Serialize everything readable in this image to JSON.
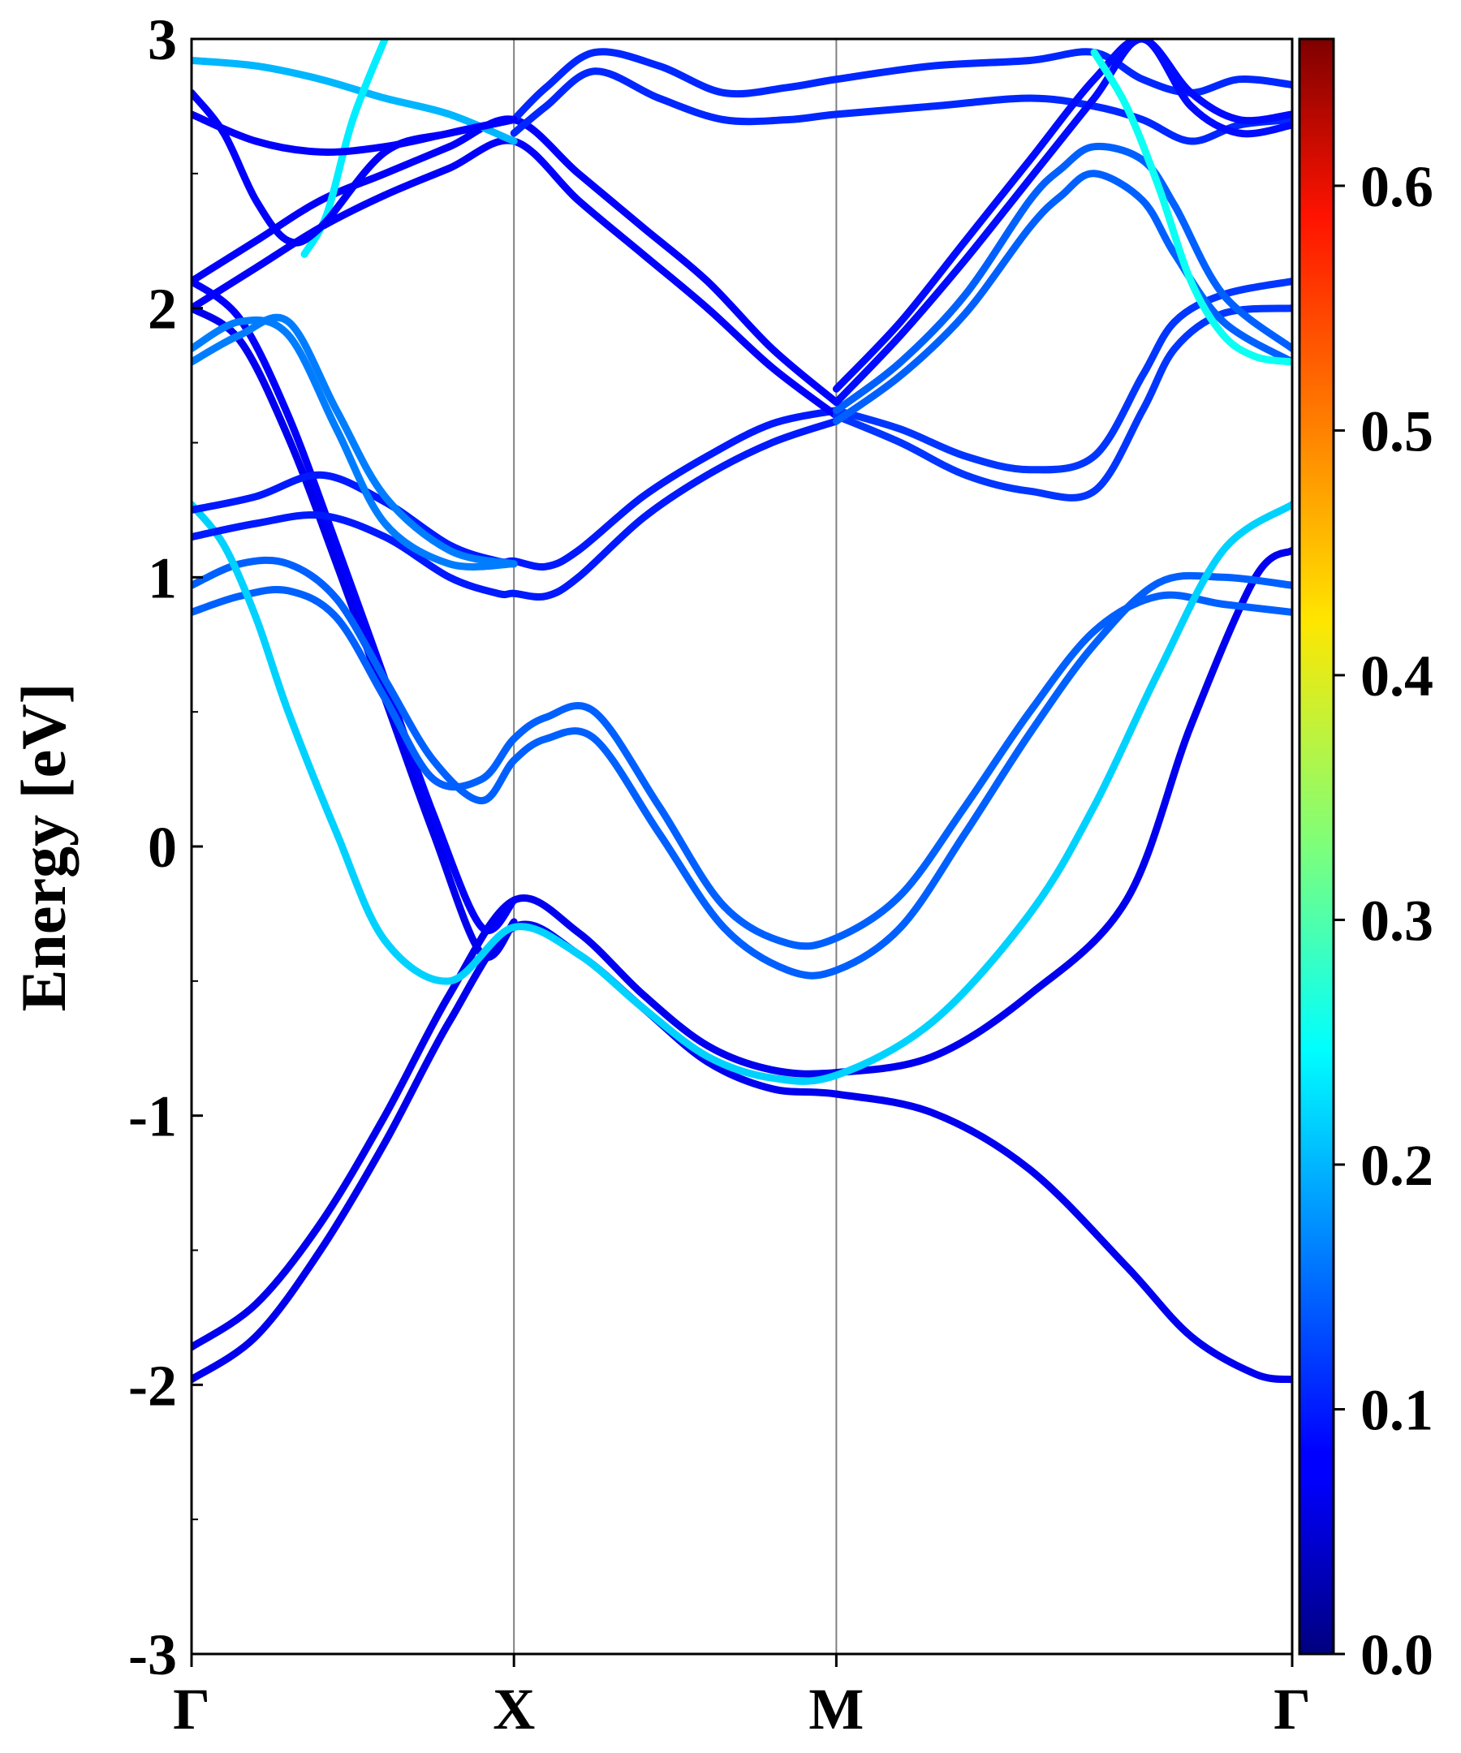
{
  "chart_data": {
    "type": "line",
    "title": "",
    "ylabel": "Energy [eV]",
    "xlabel": "",
    "ylim": [
      -3,
      3
    ],
    "y_major_ticks": [
      -3,
      -2,
      -1,
      0,
      1,
      2,
      3
    ],
    "y_tick_labels": [
      "-3",
      "-2",
      "-1",
      "0",
      "1",
      "2",
      "3"
    ],
    "y_minor_ticks": [
      -2.5,
      -1.5,
      -0.5,
      0.5,
      1.5,
      2.5
    ],
    "k_path": {
      "positions": [
        0,
        1,
        2,
        3.414
      ],
      "labels": [
        "Γ",
        "X",
        "M",
        "Γ"
      ]
    },
    "grid": false,
    "colorbar": {
      "range": [
        0,
        0.66
      ],
      "ticks": [
        0.0,
        0.1,
        0.2,
        0.3,
        0.4,
        0.5,
        0.6
      ],
      "tick_labels": [
        "0.0",
        "0.1",
        "0.2",
        "0.3",
        "0.4",
        "0.5",
        "0.6"
      ],
      "colormap": "jet"
    },
    "bands": [
      {
        "w": 0.02,
        "k": [
          0,
          0.2,
          0.4,
          0.6,
          0.8,
          1.0,
          1.2,
          1.4,
          1.6,
          1.8,
          2.0,
          2.3,
          2.6,
          2.9,
          3.1,
          3.3,
          3.414
        ],
        "e": [
          -1.86,
          -1.7,
          -1.4,
          -1.0,
          -0.55,
          -0.2,
          -0.32,
          -0.55,
          -0.74,
          -0.83,
          -0.84,
          -0.78,
          -0.55,
          -0.2,
          0.45,
          1.0,
          1.1
        ]
      },
      {
        "w": 0.02,
        "k": [
          0,
          0.2,
          0.4,
          0.6,
          0.8,
          1.0,
          1.2,
          1.4,
          1.6,
          1.8,
          2.0,
          2.3,
          2.6,
          2.9,
          3.1,
          3.3,
          3.414
        ],
        "e": [
          -1.98,
          -1.82,
          -1.5,
          -1.1,
          -0.65,
          -0.3,
          -0.4,
          -0.6,
          -0.8,
          -0.9,
          -0.92,
          -0.99,
          -1.2,
          -1.56,
          -1.82,
          -1.96,
          -1.98
        ]
      },
      {
        "w": 0.02,
        "k": [
          0,
          0.15,
          0.3,
          0.45,
          0.6,
          0.75,
          0.9,
          1.0
        ],
        "e": [
          2.0,
          1.88,
          1.52,
          1.05,
          0.55,
          0.05,
          -0.4,
          -0.28
        ]
      },
      {
        "w": 0.03,
        "k": [
          0,
          0.15,
          0.3,
          0.45,
          0.6,
          0.75,
          0.9,
          1.0
        ],
        "e": [
          2.1,
          1.96,
          1.6,
          1.12,
          0.62,
          0.12,
          -0.3,
          -0.2
        ]
      },
      {
        "w": 0.1,
        "k": [
          0,
          0.15,
          0.3,
          0.45,
          0.6,
          0.75,
          0.9,
          1.0,
          1.1,
          1.25,
          1.45,
          1.65,
          1.85,
          2.0,
          2.2,
          2.4,
          2.6,
          2.8,
          3.0,
          3.2,
          3.414
        ],
        "e": [
          0.97,
          1.05,
          1.05,
          0.92,
          0.62,
          0.32,
          0.17,
          0.32,
          0.4,
          0.4,
          0.05,
          -0.3,
          -0.46,
          -0.46,
          -0.3,
          0.05,
          0.42,
          0.75,
          0.98,
          1.0,
          0.97
        ]
      },
      {
        "w": 0.1,
        "k": [
          0,
          0.15,
          0.3,
          0.45,
          0.6,
          0.75,
          0.9,
          1.0,
          1.1,
          1.25,
          1.45,
          1.65,
          1.85,
          2.0,
          2.2,
          2.4,
          2.6,
          2.8,
          3.0,
          3.2,
          3.414
        ],
        "e": [
          0.87,
          0.93,
          0.95,
          0.85,
          0.55,
          0.25,
          0.25,
          0.4,
          0.48,
          0.5,
          0.15,
          -0.22,
          -0.36,
          -0.34,
          -0.18,
          0.15,
          0.5,
          0.8,
          0.93,
          0.9,
          0.87
        ]
      },
      {
        "w": 0.18,
        "k": [
          0,
          0.1,
          0.2,
          0.3,
          0.45,
          0.6,
          0.8,
          1.0,
          1.2,
          1.4,
          1.6,
          1.8,
          2.0,
          2.3,
          2.6,
          2.8,
          3.0,
          3.2,
          3.414
        ],
        "e": [
          1.27,
          1.12,
          0.85,
          0.5,
          0.05,
          -0.35,
          -0.5,
          -0.3,
          -0.4,
          -0.6,
          -0.78,
          -0.86,
          -0.85,
          -0.65,
          -0.25,
          0.15,
          0.65,
          1.1,
          1.27
        ]
      },
      {
        "w": 0.05,
        "k": [
          0,
          0.2,
          0.4,
          0.6,
          0.8,
          0.95,
          1.0,
          1.1,
          1.2,
          1.4,
          1.6,
          1.8,
          2.0
        ],
        "e": [
          1.25,
          1.3,
          1.38,
          1.28,
          1.12,
          1.06,
          1.06,
          1.04,
          1.1,
          1.3,
          1.45,
          1.57,
          1.62
        ]
      },
      {
        "w": 0.05,
        "k": [
          0,
          0.2,
          0.4,
          0.6,
          0.8,
          0.95,
          1.0,
          1.1,
          1.2,
          1.4,
          1.6,
          1.8,
          2.0
        ],
        "e": [
          1.15,
          1.2,
          1.23,
          1.15,
          1.0,
          0.94,
          0.94,
          0.93,
          1.0,
          1.22,
          1.38,
          1.5,
          1.58
        ]
      },
      {
        "w": 0.12,
        "k": [
          0,
          0.15,
          0.3,
          0.45,
          0.6,
          0.8,
          1.0
        ],
        "e": [
          1.85,
          1.95,
          1.9,
          1.55,
          1.2,
          1.05,
          1.05
        ]
      },
      {
        "w": 0.12,
        "k": [
          0,
          0.15,
          0.3,
          0.45,
          0.6,
          0.8,
          1.0
        ],
        "e": [
          1.8,
          1.9,
          1.95,
          1.62,
          1.3,
          1.1,
          1.05
        ]
      },
      {
        "w": 0.03,
        "k": [
          0,
          0.2,
          0.4,
          0.6,
          0.8,
          1.0,
          1.2,
          1.4,
          1.6,
          1.8,
          2.0
        ],
        "e": [
          2.1,
          2.25,
          2.4,
          2.5,
          2.6,
          2.7,
          2.5,
          2.3,
          2.1,
          1.85,
          1.65
        ]
      },
      {
        "w": 0.03,
        "k": [
          0,
          0.2,
          0.4,
          0.6,
          0.8,
          1.0,
          1.2,
          1.4,
          1.6,
          1.8,
          2.0
        ],
        "e": [
          2.0,
          2.15,
          2.3,
          2.42,
          2.52,
          2.62,
          2.4,
          2.2,
          2.0,
          1.78,
          1.6
        ]
      },
      {
        "w": 0.06,
        "k": [
          1.0,
          1.1,
          1.25,
          1.45,
          1.65,
          1.85,
          2.0,
          2.3,
          2.6,
          2.8,
          2.95,
          3.1,
          3.25,
          3.414
        ],
        "e": [
          2.7,
          2.82,
          2.95,
          2.9,
          2.8,
          2.82,
          2.85,
          2.9,
          2.92,
          2.95,
          2.85,
          2.8,
          2.85,
          2.83
        ]
      },
      {
        "w": 0.06,
        "k": [
          1.0,
          1.1,
          1.25,
          1.45,
          1.65,
          1.85,
          2.0,
          2.3,
          2.6,
          2.8,
          2.95,
          3.1,
          3.25,
          3.414
        ],
        "e": [
          2.65,
          2.75,
          2.88,
          2.78,
          2.7,
          2.7,
          2.72,
          2.75,
          2.78,
          2.75,
          2.7,
          2.62,
          2.68,
          2.7
        ]
      },
      {
        "w": 0.07,
        "k": [
          2.0,
          2.2,
          2.4,
          2.6,
          2.8,
          2.95,
          3.05,
          3.2,
          3.414
        ],
        "e": [
          1.62,
          1.55,
          1.45,
          1.4,
          1.45,
          1.75,
          1.95,
          2.05,
          2.1
        ]
      },
      {
        "w": 0.07,
        "k": [
          2.0,
          2.2,
          2.4,
          2.6,
          2.8,
          2.95,
          3.05,
          3.2,
          3.414
        ],
        "e": [
          1.6,
          1.5,
          1.38,
          1.32,
          1.32,
          1.62,
          1.85,
          1.98,
          2.0
        ]
      },
      {
        "w": 0.1,
        "k": [
          2.0,
          2.2,
          2.4,
          2.6,
          2.7,
          2.8,
          2.95,
          3.05,
          3.2,
          3.414
        ],
        "e": [
          1.62,
          1.8,
          2.05,
          2.4,
          2.52,
          2.6,
          2.55,
          2.38,
          2.05,
          1.85
        ]
      },
      {
        "w": 0.1,
        "k": [
          2.0,
          2.2,
          2.4,
          2.6,
          2.7,
          2.8,
          2.95,
          3.05,
          3.2,
          3.414
        ],
        "e": [
          1.58,
          1.75,
          1.98,
          2.3,
          2.42,
          2.5,
          2.4,
          2.2,
          1.95,
          1.8
        ]
      },
      {
        "w": 0.04,
        "k": [
          2.0,
          2.2,
          2.4,
          2.6,
          2.8,
          2.95,
          3.1,
          3.25,
          3.414
        ],
        "e": [
          1.7,
          1.95,
          2.25,
          2.55,
          2.85,
          3.0,
          2.8,
          2.7,
          2.72
        ]
      },
      {
        "w": 0.04,
        "k": [
          2.0,
          2.2,
          2.4,
          2.6,
          2.8,
          2.95,
          3.1,
          3.25,
          3.414
        ],
        "e": [
          1.65,
          1.9,
          2.18,
          2.48,
          2.78,
          3.0,
          2.75,
          2.65,
          2.68
        ]
      },
      {
        "w": 0.22,
        "k": [
          2.8,
          2.9,
          3.0,
          3.1,
          3.2,
          3.3,
          3.414
        ],
        "e": [
          2.95,
          2.75,
          2.45,
          2.1,
          1.9,
          1.82,
          1.8
        ]
      },
      {
        "w": 0.16,
        "k": [
          0,
          0.2,
          0.4,
          0.6,
          0.8,
          1.0
        ],
        "e": [
          2.92,
          2.9,
          2.85,
          2.78,
          2.72,
          2.62
        ]
      },
      {
        "w": 0.2,
        "k": [
          0.35,
          0.42,
          0.5,
          0.6
        ],
        "e": [
          2.2,
          2.35,
          2.7,
          3.0
        ]
      },
      {
        "w": 0.03,
        "k": [
          0,
          0.1,
          0.2,
          0.3,
          0.4,
          0.6,
          0.8,
          1.0
        ],
        "e": [
          2.8,
          2.65,
          2.4,
          2.25,
          2.3,
          2.58,
          2.65,
          2.7
        ]
      },
      {
        "w": 0.03,
        "k": [
          0,
          0.2,
          0.4,
          0.6,
          0.8,
          1.0
        ],
        "e": [
          2.72,
          2.62,
          2.58,
          2.6,
          2.65,
          2.7
        ]
      }
    ]
  }
}
